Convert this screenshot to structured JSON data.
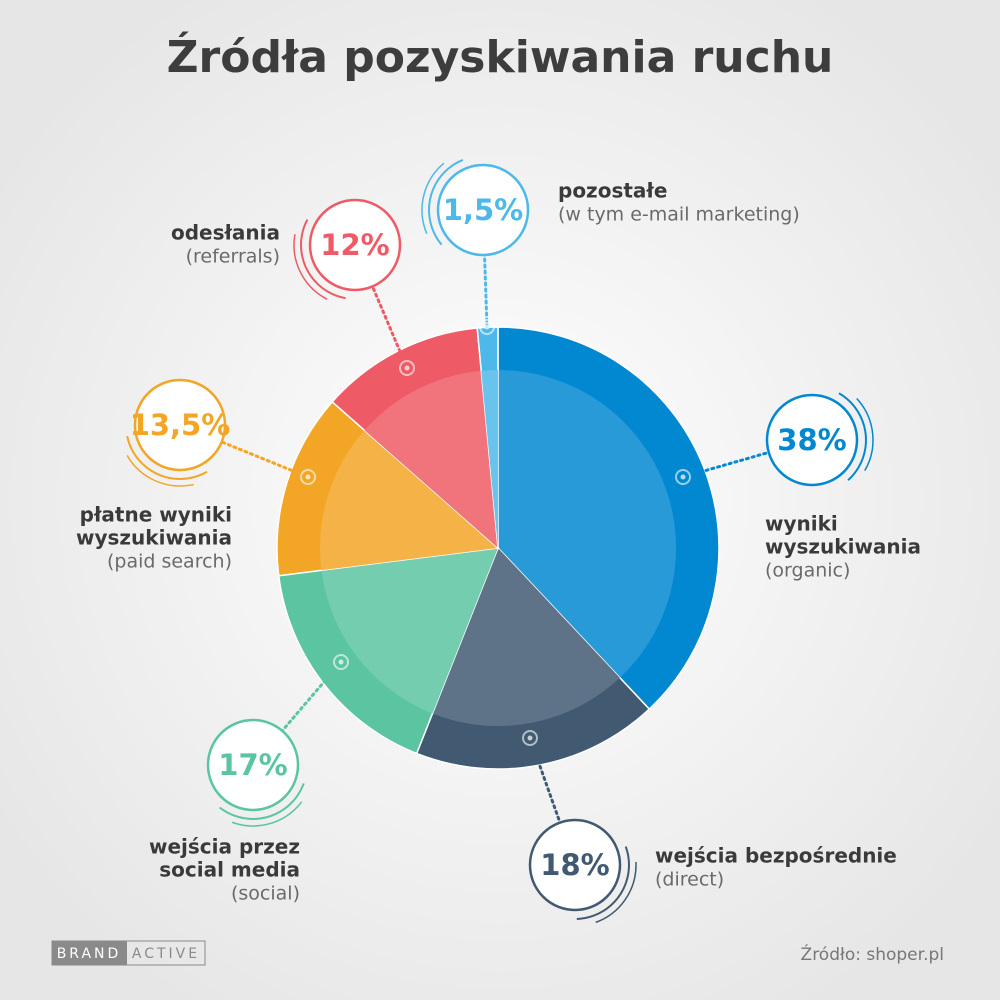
{
  "chart_data": {
    "type": "pie",
    "title": "Źródła pozyskiwania ruchu",
    "categories": [
      [
        "wyniki",
        "wyszukiwania"
      ],
      [
        "wejścia bezpośrednie"
      ],
      [
        "wejścia przez",
        "social media"
      ],
      [
        "płatne wyniki",
        "wyszukiwania"
      ],
      [
        "odesłania"
      ],
      [
        "pozostałe"
      ]
    ],
    "notes": [
      "(organic)",
      "(direct)",
      "(social)",
      "(paid search)",
      "(referrals)",
      "(w tym e-mail marketing)"
    ],
    "values": [
      38,
      18,
      17,
      13.5,
      12,
      1.5
    ],
    "value_labels": [
      "38%",
      "18%",
      "17%",
      "13,5%",
      "12%",
      "1,5%"
    ],
    "colors": [
      "#0288d1",
      "#415a72",
      "#5bc4a1",
      "#f3a526",
      "#ee5a65",
      "#4db8ea"
    ],
    "source": "Źródło: shoper.pl",
    "brand": [
      "BRAND",
      "ACTIVE"
    ]
  }
}
